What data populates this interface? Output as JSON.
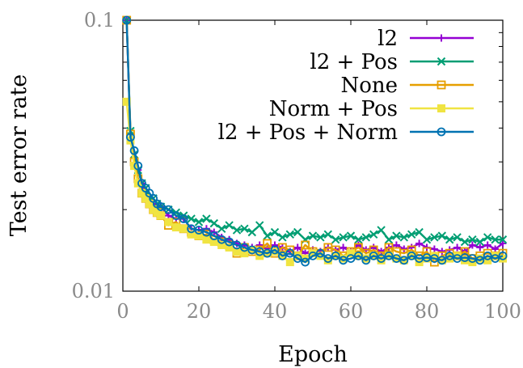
{
  "chart_data": {
    "type": "line",
    "xlabel": "Epoch",
    "ylabel": "Test error rate",
    "xlim": [
      0,
      100
    ],
    "ylim": [
      0.01,
      0.1
    ],
    "yscale": "log",
    "grid": false,
    "legend_position": "top-right",
    "x_ticks": [
      "0",
      "20",
      "40",
      "60",
      "80",
      "100"
    ],
    "y_ticks": [
      "0.01",
      "0.1"
    ],
    "series": [
      {
        "name": "l2",
        "color": "#9400d3",
        "marker": "plus",
        "x": [
          1,
          2,
          3,
          4,
          5,
          6,
          7,
          8,
          9,
          10,
          12,
          14,
          16,
          18,
          20,
          22,
          24,
          26,
          28,
          30,
          32,
          34,
          36,
          38,
          40,
          42,
          44,
          46,
          48,
          50,
          52,
          54,
          56,
          58,
          60,
          62,
          64,
          66,
          68,
          70,
          72,
          74,
          76,
          78,
          80,
          82,
          84,
          86,
          88,
          90,
          92,
          94,
          96,
          98,
          100
        ],
        "y": [
          0.1,
          0.038,
          0.031,
          0.028,
          0.025,
          0.023,
          0.022,
          0.021,
          0.02,
          0.0205,
          0.019,
          0.0185,
          0.0185,
          0.017,
          0.0168,
          0.017,
          0.0165,
          0.0158,
          0.0155,
          0.015,
          0.0148,
          0.0145,
          0.0148,
          0.0143,
          0.0148,
          0.0145,
          0.014,
          0.0145,
          0.0138,
          0.0142,
          0.014,
          0.0145,
          0.0142,
          0.0145,
          0.014,
          0.0148,
          0.0142,
          0.0145,
          0.014,
          0.0145,
          0.0148,
          0.0143,
          0.0145,
          0.015,
          0.0145,
          0.0143,
          0.014,
          0.0142,
          0.0145,
          0.014,
          0.0148,
          0.0145,
          0.0148,
          0.0143,
          0.015
        ]
      },
      {
        "name": "l2 + Pos",
        "color": "#009e73",
        "marker": "cross",
        "x": [
          1,
          2,
          3,
          4,
          5,
          6,
          7,
          8,
          9,
          10,
          12,
          14,
          16,
          18,
          20,
          22,
          24,
          26,
          28,
          30,
          32,
          34,
          36,
          38,
          40,
          42,
          44,
          46,
          48,
          50,
          52,
          54,
          56,
          58,
          60,
          62,
          64,
          66,
          68,
          70,
          72,
          74,
          76,
          78,
          80,
          82,
          84,
          86,
          88,
          90,
          92,
          94,
          96,
          98,
          100
        ],
        "y": [
          0.1,
          0.039,
          0.032,
          0.028,
          0.025,
          0.024,
          0.022,
          0.022,
          0.021,
          0.0205,
          0.02,
          0.0195,
          0.019,
          0.0185,
          0.018,
          0.0185,
          0.0178,
          0.017,
          0.0175,
          0.0168,
          0.017,
          0.0165,
          0.0175,
          0.016,
          0.0165,
          0.0158,
          0.0162,
          0.0165,
          0.0155,
          0.016,
          0.0158,
          0.0162,
          0.0155,
          0.0158,
          0.016,
          0.0155,
          0.0158,
          0.0162,
          0.0168,
          0.0155,
          0.016,
          0.0158,
          0.0162,
          0.0165,
          0.0155,
          0.0158,
          0.016,
          0.0155,
          0.0158,
          0.0152,
          0.0155,
          0.0152,
          0.0158,
          0.0155,
          0.0155
        ]
      },
      {
        "name": "None",
        "color": "#e69f00",
        "marker": "square-open",
        "x": [
          1,
          2,
          3,
          4,
          5,
          6,
          7,
          8,
          9,
          10,
          12,
          14,
          16,
          18,
          20,
          22,
          24,
          26,
          28,
          30,
          32,
          34,
          36,
          38,
          40,
          42,
          44,
          46,
          48,
          50,
          52,
          54,
          56,
          58,
          60,
          62,
          64,
          66,
          68,
          70,
          72,
          74,
          76,
          78,
          80,
          82,
          84,
          86,
          88,
          90,
          92,
          94,
          96,
          98,
          100
        ],
        "y": [
          0.1,
          0.038,
          0.03,
          0.026,
          0.023,
          0.022,
          0.021,
          0.02,
          0.0195,
          0.019,
          0.0175,
          0.018,
          0.017,
          0.0165,
          0.016,
          0.0162,
          0.0155,
          0.0152,
          0.0148,
          0.0138,
          0.0145,
          0.014,
          0.0142,
          0.015,
          0.0138,
          0.0145,
          0.0142,
          0.0135,
          0.0148,
          0.014,
          0.0138,
          0.0145,
          0.0142,
          0.0135,
          0.014,
          0.0145,
          0.0138,
          0.0142,
          0.0135,
          0.0145,
          0.014,
          0.0138,
          0.0142,
          0.0135,
          0.014,
          0.0128,
          0.0135,
          0.0138,
          0.0135,
          0.014,
          0.0132,
          0.0135,
          0.0138,
          0.0135,
          0.0138
        ]
      },
      {
        "name": "Norm + Pos",
        "color": "#f0e442",
        "marker": "square-filled",
        "x": [
          1,
          2,
          3,
          4,
          5,
          6,
          7,
          8,
          9,
          10,
          12,
          14,
          16,
          18,
          20,
          22,
          24,
          26,
          28,
          30,
          32,
          34,
          36,
          38,
          40,
          42,
          44,
          46,
          48,
          50,
          52,
          54,
          56,
          58,
          60,
          62,
          64,
          66,
          68,
          70,
          72,
          74,
          76,
          78,
          80,
          82,
          84,
          86,
          88,
          90,
          92,
          94,
          96,
          98,
          100
        ],
        "y": [
          0.05,
          0.036,
          0.029,
          0.025,
          0.023,
          0.022,
          0.021,
          0.02,
          0.0195,
          0.019,
          0.018,
          0.0172,
          0.017,
          0.0162,
          0.016,
          0.0155,
          0.0152,
          0.0148,
          0.0145,
          0.014,
          0.0138,
          0.0142,
          0.0135,
          0.0138,
          0.014,
          0.0135,
          0.0128,
          0.0135,
          0.0132,
          0.0138,
          0.0135,
          0.013,
          0.0135,
          0.0132,
          0.0138,
          0.0135,
          0.0132,
          0.0135,
          0.013,
          0.0135,
          0.0132,
          0.013,
          0.0135,
          0.0128,
          0.0132,
          0.0135,
          0.013,
          0.0132,
          0.0135,
          0.013,
          0.0128,
          0.0132,
          0.013,
          0.0135,
          0.0132
        ]
      },
      {
        "name": "l2 + Pos + Norm",
        "color": "#0072b2",
        "marker": "circle-open",
        "x": [
          1,
          2,
          3,
          4,
          5,
          6,
          7,
          8,
          9,
          10,
          12,
          14,
          16,
          18,
          20,
          22,
          24,
          26,
          28,
          30,
          32,
          34,
          36,
          38,
          40,
          42,
          44,
          46,
          48,
          50,
          52,
          54,
          56,
          58,
          60,
          62,
          64,
          66,
          68,
          70,
          72,
          74,
          76,
          78,
          80,
          82,
          84,
          86,
          88,
          90,
          92,
          94,
          96,
          98,
          100
        ],
        "y": [
          0.1,
          0.037,
          0.033,
          0.029,
          0.025,
          0.024,
          0.023,
          0.022,
          0.021,
          0.0205,
          0.02,
          0.019,
          0.0185,
          0.017,
          0.0168,
          0.0165,
          0.016,
          0.0155,
          0.0152,
          0.0148,
          0.0145,
          0.0142,
          0.014,
          0.0138,
          0.0142,
          0.0135,
          0.0138,
          0.0132,
          0.0128,
          0.0135,
          0.0138,
          0.0132,
          0.0135,
          0.013,
          0.0132,
          0.0135,
          0.013,
          0.0135,
          0.0132,
          0.0135,
          0.0132,
          0.013,
          0.0135,
          0.0132,
          0.0133,
          0.0132,
          0.013,
          0.0135,
          0.0132,
          0.0133,
          0.0132,
          0.013,
          0.0135,
          0.0132,
          0.0135
        ]
      }
    ]
  }
}
